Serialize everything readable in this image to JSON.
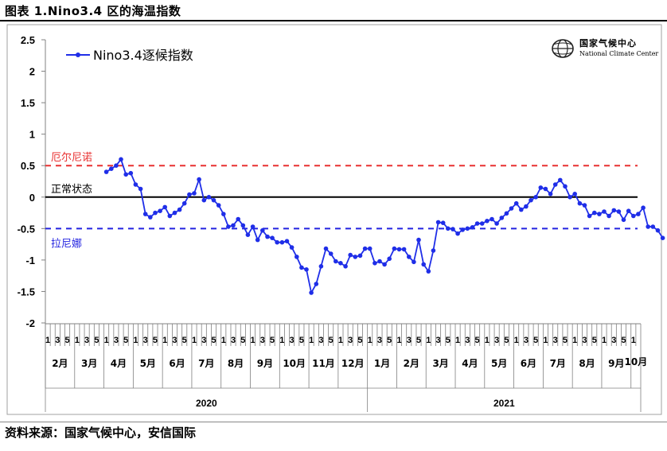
{
  "page": {
    "title": "图表 1.Nino3.4 区的海温指数",
    "source": "资料来源：国家气候中心，安信国际"
  },
  "logo": {
    "name_cn": "国家气候中心",
    "name_en": "National Climate Center",
    "icon": "globe-emblem-icon"
  },
  "colors": {
    "series": "#1f2ee8",
    "el_nino_line": "#e83030",
    "la_nina_line": "#2323e0",
    "neutral_line": "#000000",
    "axis": "#808080"
  },
  "chart_data": {
    "type": "line",
    "title": "",
    "xlabel": "",
    "ylabel": "",
    "ylim": [
      -2,
      2.5
    ],
    "yticks": [
      "2.5",
      "2",
      "1.5",
      "1",
      "0.5",
      "0",
      "-0.5",
      "-1",
      "-1.5",
      "-2"
    ],
    "grid": false,
    "legend": {
      "position": "top-left",
      "entries": [
        "Nino3.4逐候指数"
      ]
    },
    "reference_lines": [
      {
        "label": "厄尔尼诺",
        "value": 0.5,
        "style": "dashed",
        "color": "#e83030"
      },
      {
        "label": "正常状态",
        "value": 0,
        "style": "solid",
        "color": "#000000"
      },
      {
        "label": "拉尼娜",
        "value": -0.5,
        "style": "dashed",
        "color": "#2323e0"
      }
    ],
    "pentad_tick_labels": [
      "1",
      "3",
      "5"
    ],
    "months": [
      {
        "label": "2月",
        "year": "2020",
        "pentads": 6
      },
      {
        "label": "3月",
        "year": "2020",
        "pentads": 6
      },
      {
        "label": "4月",
        "year": "2020",
        "pentads": 6
      },
      {
        "label": "5月",
        "year": "2020",
        "pentads": 6
      },
      {
        "label": "6月",
        "year": "2020",
        "pentads": 6
      },
      {
        "label": "7月",
        "year": "2020",
        "pentads": 6
      },
      {
        "label": "8月",
        "year": "2020",
        "pentads": 6
      },
      {
        "label": "9月",
        "year": "2020",
        "pentads": 6
      },
      {
        "label": "10月",
        "year": "2020",
        "pentads": 6
      },
      {
        "label": "11月",
        "year": "2020",
        "pentads": 6
      },
      {
        "label": "12月",
        "year": "2020",
        "pentads": 6
      },
      {
        "label": "1月",
        "year": "2021",
        "pentads": 6
      },
      {
        "label": "2月",
        "year": "2021",
        "pentads": 6
      },
      {
        "label": "3月",
        "year": "2021",
        "pentads": 6
      },
      {
        "label": "4月",
        "year": "2021",
        "pentads": 6
      },
      {
        "label": "5月",
        "year": "2021",
        "pentads": 6
      },
      {
        "label": "6月",
        "year": "2021",
        "pentads": 6
      },
      {
        "label": "7月",
        "year": "2021",
        "pentads": 6
      },
      {
        "label": "8月",
        "year": "2021",
        "pentads": 6
      },
      {
        "label": "9月",
        "year": "2021",
        "pentads": 6
      },
      {
        "label": "10月",
        "year": "2021",
        "pentads": 2
      }
    ],
    "years": [
      {
        "label": "2020",
        "months": 11
      },
      {
        "label": "2021",
        "months": 10
      }
    ],
    "series": [
      {
        "name": "Nino3.4逐候指数",
        "start_index": 12,
        "values": [
          0.4,
          0.45,
          0.5,
          0.6,
          0.36,
          0.38,
          0.2,
          0.13,
          -0.27,
          -0.32,
          -0.25,
          -0.22,
          -0.16,
          -0.3,
          -0.25,
          -0.2,
          -0.1,
          0.04,
          0.06,
          0.28,
          -0.05,
          0.0,
          -0.05,
          -0.13,
          -0.27,
          -0.47,
          -0.45,
          -0.35,
          -0.45,
          -0.6,
          -0.47,
          -0.68,
          -0.53,
          -0.63,
          -0.65,
          -0.72,
          -0.72,
          -0.7,
          -0.8,
          -0.95,
          -1.12,
          -1.15,
          -1.52,
          -1.38,
          -1.1,
          -0.82,
          -0.9,
          -1.02,
          -1.05,
          -1.1,
          -0.92,
          -0.95,
          -0.93,
          -0.82,
          -0.82,
          -1.05,
          -1.02,
          -1.07,
          -0.98,
          -0.82,
          -0.83,
          -0.83,
          -0.95,
          -1.03,
          -0.68,
          -1.07,
          -1.18,
          -0.85,
          -0.4,
          -0.41,
          -0.5,
          -0.51,
          -0.58,
          -0.52,
          -0.5,
          -0.48,
          -0.42,
          -0.42,
          -0.38,
          -0.35,
          -0.42,
          -0.33,
          -0.26,
          -0.18,
          -0.1,
          -0.2,
          -0.15,
          -0.05,
          0.0,
          0.15,
          0.13,
          0.05,
          0.2,
          0.27,
          0.17,
          0.0,
          0.05,
          -0.1,
          -0.13,
          -0.3,
          -0.25,
          -0.27,
          -0.23,
          -0.3,
          -0.21,
          -0.23,
          -0.36,
          -0.22,
          -0.3,
          -0.27,
          -0.17,
          -0.47,
          -0.47,
          -0.53,
          -0.65
        ]
      }
    ]
  }
}
